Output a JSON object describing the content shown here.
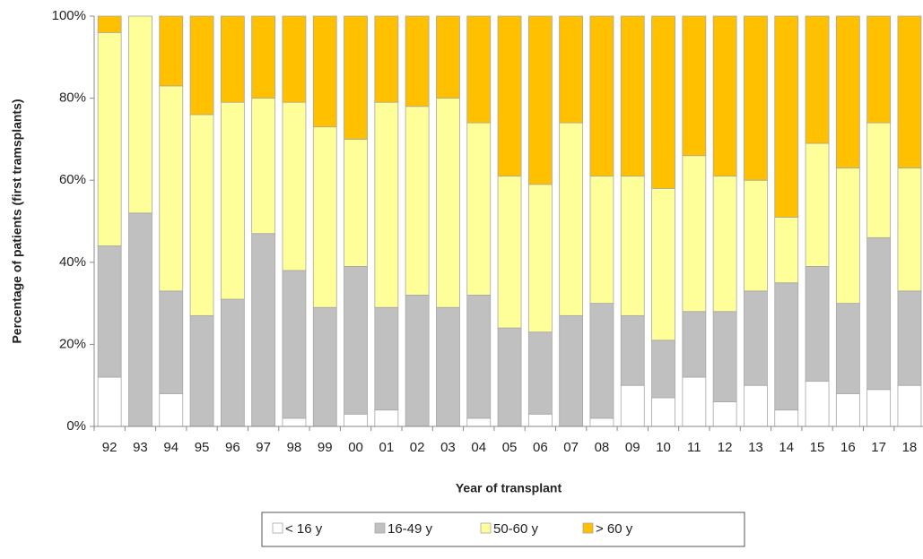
{
  "chart_data": {
    "type": "stacked-bar",
    "x_label": "Year of transplant",
    "y_label": "Percentage of patients (first tramsplants)",
    "categories": [
      "92",
      "93",
      "94",
      "95",
      "96",
      "97",
      "98",
      "99",
      "00",
      "01",
      "02",
      "03",
      "04",
      "05",
      "06",
      "07",
      "08",
      "09",
      "10",
      "11",
      "12",
      "13",
      "14",
      "15",
      "16",
      "17",
      "18"
    ],
    "series": [
      {
        "name": "< 16 y",
        "color": "#ffffff",
        "values": [
          12,
          0,
          8,
          0,
          0,
          0,
          2,
          0,
          3,
          4,
          0,
          0,
          2,
          0,
          3,
          0,
          2,
          10,
          7,
          12,
          6,
          10,
          4,
          11,
          8,
          9,
          10
        ]
      },
      {
        "name": "16-49 y",
        "color": "#c0c0c0",
        "values": [
          32,
          52,
          25,
          27,
          31,
          47,
          36,
          29,
          36,
          25,
          32,
          29,
          30,
          24,
          20,
          27,
          28,
          17,
          14,
          16,
          22,
          23,
          31,
          28,
          22,
          37,
          23
        ]
      },
      {
        "name": "50-60 y",
        "color": "#ffff99",
        "values": [
          52,
          48,
          50,
          49,
          48,
          33,
          41,
          44,
          31,
          50,
          46,
          51,
          42,
          37,
          36,
          47,
          31,
          34,
          37,
          38,
          33,
          27,
          16,
          30,
          33,
          28,
          30
        ]
      },
      {
        "name": "> 60 y",
        "color": "#ffc000",
        "values": [
          4,
          0,
          17,
          24,
          21,
          20,
          21,
          27,
          30,
          21,
          22,
          20,
          26,
          39,
          41,
          26,
          39,
          39,
          42,
          34,
          39,
          40,
          49,
          31,
          37,
          26,
          37
        ]
      }
    ],
    "ylim": [
      0,
      100
    ],
    "yticks": [
      {
        "value": 0,
        "label": "0%"
      },
      {
        "value": 20,
        "label": "20%"
      },
      {
        "value": 40,
        "label": "40%"
      },
      {
        "value": 60,
        "label": "60%"
      },
      {
        "value": 80,
        "label": "80%"
      },
      {
        "value": 100,
        "label": "100%"
      }
    ],
    "grid": false
  }
}
